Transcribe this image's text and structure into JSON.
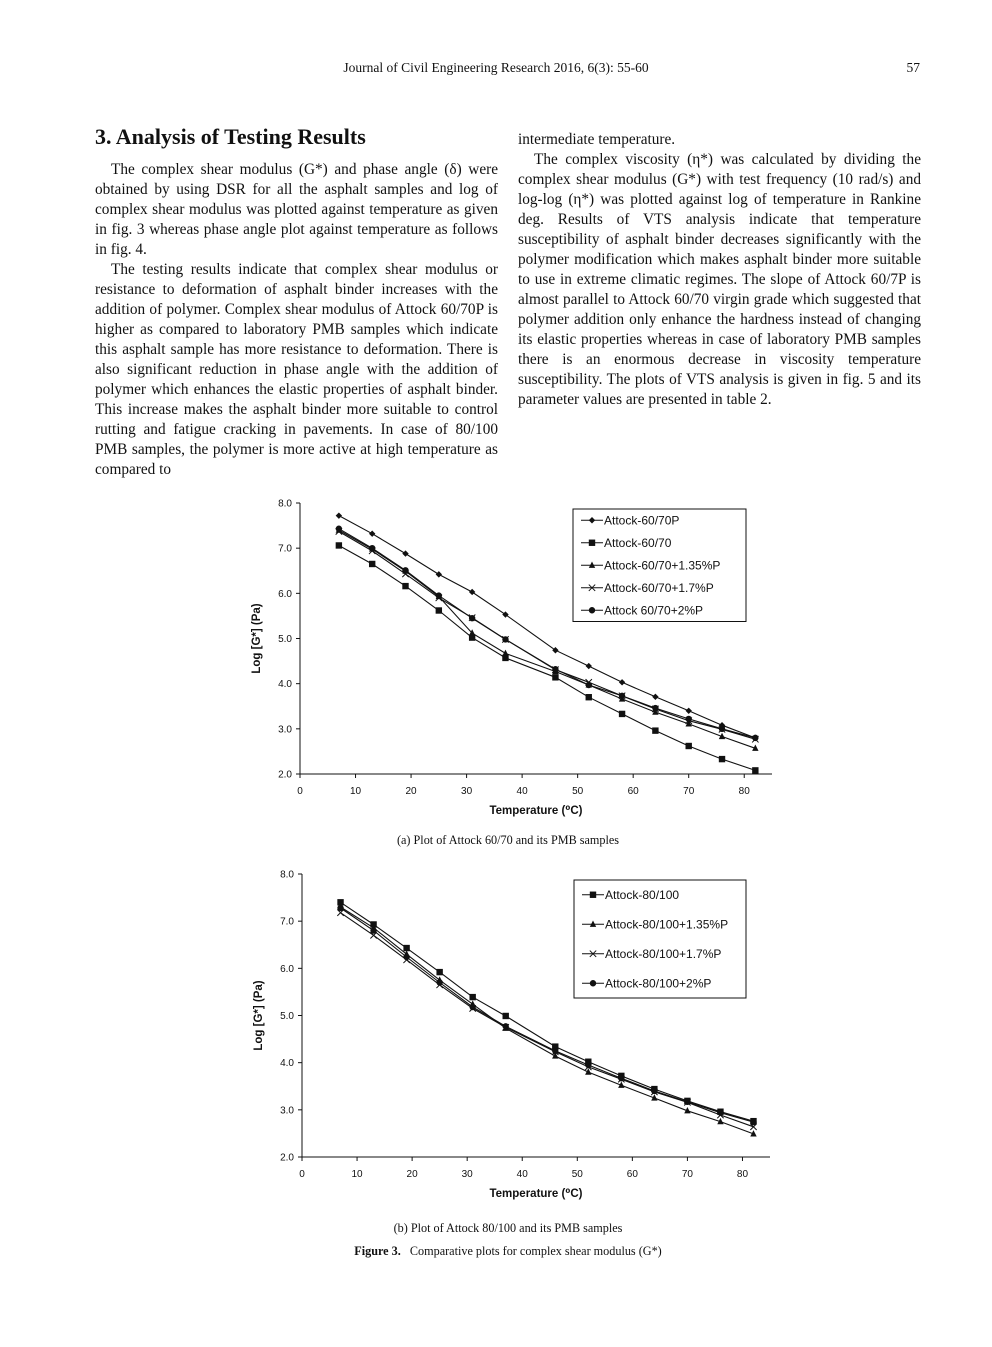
{
  "header": {
    "journal": "Journal of Civil Engineering Research 2016, 6(3): 55-60",
    "page_number": "57"
  },
  "section": {
    "title": "3. Analysis of Testing Results"
  },
  "left_column": {
    "paragraphs": [
      "The complex shear modulus (G*) and phase angle (δ) were obtained by using DSR for all the asphalt samples and log of complex shear modulus was plotted against temperature as given in fig. 3 whereas phase angle plot against temperature as follows in fig. 4.",
      "The testing results indicate that complex shear modulus or resistance to deformation of asphalt binder increases with the addition of polymer. Complex shear modulus of Attock 60/70P is higher as compared to laboratory PMB samples which indicate this asphalt sample has more resistance to deformation. There is also significant reduction in phase angle with the addition of polymer which enhances the elastic properties of asphalt binder. This increase makes the asphalt binder more suitable to control rutting and fatigue cracking in pavements. In case of 80/100 PMB samples, the polymer is more active at high temperature as compared to"
    ]
  },
  "right_column": {
    "continuation": "intermediate temperature.",
    "paragraph": "The complex viscosity (η*) was calculated by dividing the complex shear modulus (G*) with test frequency (10 rad/s) and log-log (η*) was plotted against log of temperature in Rankine deg. Results of VTS analysis indicate that temperature susceptibility of asphalt binder decreases significantly with the polymer modification which makes asphalt binder more suitable to use in extreme climatic regimes. The slope of Attock 60/7P is almost parallel to Attock 60/70 virgin grade which suggested that polymer addition only enhance the hardness instead of changing its elastic properties whereas in case of laboratory PMB samples there is an enormous decrease in viscosity temperature susceptibility. The plots of VTS analysis is given in fig. 5 and its parameter values are presented in table 2."
  },
  "figure": {
    "caption_label": "Figure 3.",
    "caption_text": "Comparative plots for complex shear modulus (G*)",
    "sub_a": "(a) Plot of Attock 60/70 and its PMB samples",
    "sub_b": "(b) Plot of Attock 80/100 and its PMB samples"
  },
  "chart_data": [
    {
      "type": "line",
      "xlabel": "Temperature (⁰C)",
      "ylabel": "Log [G*] (Pa)",
      "xlim": [
        0,
        85
      ],
      "ylim": [
        2.0,
        8.0
      ],
      "x_ticks": [
        "0",
        "10",
        "20",
        "30",
        "40",
        "50",
        "60",
        "70",
        "80"
      ],
      "y_ticks": [
        "2.0",
        "3.0",
        "4.0",
        "5.0",
        "6.0",
        "7.0",
        "8.0"
      ],
      "legend_position": "top-right",
      "x": [
        7,
        13,
        19,
        25,
        31,
        37,
        46,
        52,
        58,
        64,
        70,
        76,
        82
      ],
      "series": [
        {
          "name": "Attock-60/70P",
          "marker": "diamond",
          "values": [
            7.72,
            7.32,
            6.88,
            6.42,
            6.03,
            5.53,
            4.74,
            4.39,
            4.03,
            3.71,
            3.4,
            3.08,
            2.8
          ]
        },
        {
          "name": "Attock-60/70",
          "marker": "square",
          "values": [
            7.06,
            6.65,
            6.16,
            5.62,
            5.02,
            4.57,
            4.14,
            3.7,
            3.33,
            2.96,
            2.62,
            2.33,
            2.08
          ]
        },
        {
          "name": "Attock-60/70+1.35%P",
          "marker": "triangle",
          "values": [
            7.4,
            6.98,
            6.49,
            5.93,
            5.12,
            4.67,
            4.27,
            3.97,
            3.66,
            3.37,
            3.11,
            2.83,
            2.57
          ]
        },
        {
          "name": "Attock-60/70+1.7%P",
          "marker": "x",
          "values": [
            7.37,
            6.94,
            6.43,
            5.9,
            5.46,
            4.98,
            4.31,
            4.03,
            3.73,
            3.44,
            3.18,
            2.99,
            2.77
          ]
        },
        {
          "name": "Attock 60/70+2%P",
          "marker": "circle",
          "values": [
            7.43,
            7.0,
            6.51,
            5.95,
            5.45,
            4.98,
            4.32,
            3.97,
            3.73,
            3.46,
            3.22,
            3.0,
            2.8
          ]
        }
      ]
    },
    {
      "type": "line",
      "xlabel": "Temperature (⁰C)",
      "ylabel": "Log [G*] (Pa)",
      "xlim": [
        0,
        85
      ],
      "ylim": [
        2.0,
        8.0
      ],
      "x_ticks": [
        "0",
        "10",
        "20",
        "30",
        "40",
        "50",
        "60",
        "70",
        "80"
      ],
      "y_ticks": [
        "2.0",
        "3.0",
        "4.0",
        "5.0",
        "6.0",
        "7.0",
        "8.0"
      ],
      "legend_position": "top-right",
      "x": [
        7,
        13,
        19,
        25,
        31,
        37,
        46,
        52,
        58,
        64,
        70,
        76,
        82
      ],
      "series": [
        {
          "name": "Attock-80/100",
          "marker": "square",
          "values": [
            7.4,
            6.93,
            6.43,
            5.92,
            5.39,
            4.99,
            4.34,
            4.02,
            3.72,
            3.44,
            3.19,
            2.96,
            2.76
          ]
        },
        {
          "name": "Attock-80/100+1.35%P",
          "marker": "triangle",
          "values": [
            7.3,
            6.86,
            6.3,
            5.75,
            5.24,
            4.73,
            4.14,
            3.8,
            3.52,
            3.25,
            2.98,
            2.75,
            2.49
          ]
        },
        {
          "name": "Attock-80/100+1.7%P",
          "marker": "x",
          "values": [
            7.18,
            6.7,
            6.18,
            5.65,
            5.15,
            4.75,
            4.23,
            3.91,
            3.65,
            3.38,
            3.16,
            2.89,
            2.64
          ]
        },
        {
          "name": "Attock-80/100+2%P",
          "marker": "circle",
          "values": [
            7.28,
            6.8,
            6.24,
            5.7,
            5.18,
            4.77,
            4.25,
            3.95,
            3.67,
            3.4,
            3.17,
            2.94,
            2.74
          ]
        }
      ]
    }
  ]
}
